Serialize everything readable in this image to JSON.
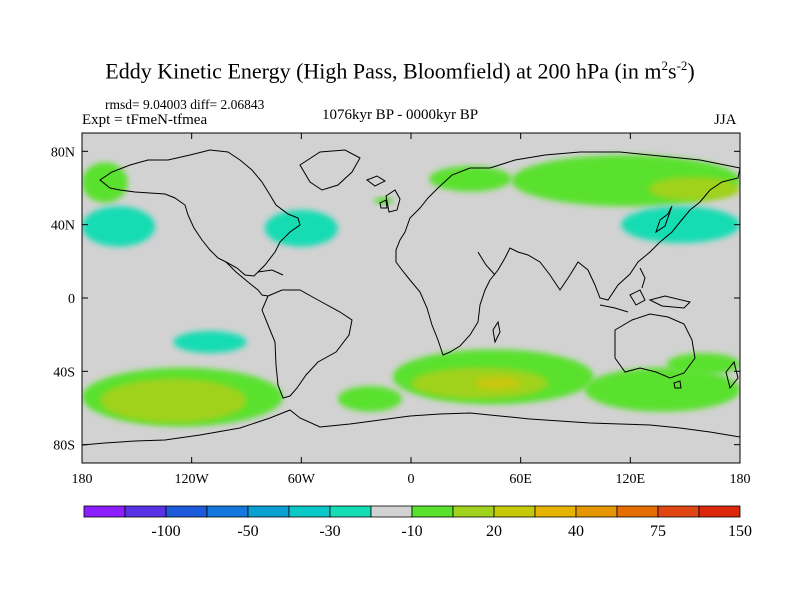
{
  "title": {
    "text": "Eddy Kinetic Energy (High Pass, Bloomfield) at 200 hPa (in m",
    "unit_exp1": "2",
    "unit_mid": "s",
    "unit_exp2": "-2",
    "unit_close": ")"
  },
  "stats": "rmsd= 9.04003 diff= 2.06843",
  "expt": "Expt = tFmeN-tfmea",
  "period": "1076kyr BP - 0000kyr BP",
  "season": "JJA",
  "axes": {
    "x_ticks": [
      "180",
      "120W",
      "60W",
      "0",
      "60E",
      "120E",
      "180"
    ],
    "y_ticks": [
      "80N",
      "40N",
      "0",
      "40S",
      "80S"
    ]
  },
  "colorbar": {
    "colors": [
      "#8c1eff",
      "#5a32e6",
      "#1e5adc",
      "#1478dc",
      "#0aa0d2",
      "#0ac8c8",
      "#14dcb4",
      "#d2d2d2",
      "#5ae12d",
      "#a0d21e",
      "#c8c80a",
      "#e6b400",
      "#e69600",
      "#e66e00",
      "#e04614",
      "#dc280a"
    ],
    "labels": [
      "-100",
      "-50",
      "-30",
      "-10",
      "20",
      "40",
      "75",
      "150"
    ]
  },
  "field_colors": {
    "background": "#d2d2d2",
    "teal": "#14dcb4",
    "cyan": "#0ac8c8",
    "green": "#5ae12d",
    "yellowgreen": "#a0d21e",
    "olive": "#c8c80a"
  },
  "regions": [
    {
      "level": "green",
      "lon_min": -180,
      "lon_max": -155,
      "lat_min": 52,
      "lat_max": 74
    },
    {
      "level": "green",
      "lon_min": 55,
      "lon_max": 180,
      "lat_min": 50,
      "lat_max": 78
    },
    {
      "level": "yellowgreen",
      "lon_min": 130,
      "lon_max": 180,
      "lat_min": 53,
      "lat_max": 66
    },
    {
      "level": "green",
      "lon_min": 10,
      "lon_max": 55,
      "lat_min": 58,
      "lat_max": 72
    },
    {
      "level": "green",
      "lon_min": -20,
      "lon_max": -10,
      "lat_min": 51,
      "lat_max": 55
    },
    {
      "level": "teal",
      "lon_min": -180,
      "lon_max": -140,
      "lat_min": 28,
      "lat_max": 50
    },
    {
      "level": "teal",
      "lon_min": -80,
      "lon_max": -40,
      "lat_min": 28,
      "lat_max": 48
    },
    {
      "level": "teal",
      "lon_min": 115,
      "lon_max": 180,
      "lat_min": 30,
      "lat_max": 50
    },
    {
      "level": "teal",
      "lon_min": -130,
      "lon_max": -90,
      "lat_min": -30,
      "lat_max": -18
    },
    {
      "level": "green",
      "lon_min": -180,
      "lon_max": -70,
      "lat_min": -70,
      "lat_max": -38
    },
    {
      "level": "yellowgreen",
      "lon_min": -170,
      "lon_max": -90,
      "lat_min": -68,
      "lat_max": -44
    },
    {
      "level": "green",
      "lon_min": -40,
      "lon_max": -5,
      "lat_min": -62,
      "lat_max": -48
    },
    {
      "level": "green",
      "lon_min": -10,
      "lon_max": 100,
      "lat_min": -58,
      "lat_max": -28
    },
    {
      "level": "yellowgreen",
      "lon_min": 0,
      "lon_max": 75,
      "lat_min": -55,
      "lat_max": -38
    },
    {
      "level": "olive",
      "lon_min": 35,
      "lon_max": 60,
      "lat_min": -50,
      "lat_max": -43
    },
    {
      "level": "green",
      "lon_min": 95,
      "lon_max": 180,
      "lat_min": -62,
      "lat_max": -38
    },
    {
      "level": "green",
      "lon_min": 140,
      "lon_max": 180,
      "lat_min": -42,
      "lat_max": -30
    }
  ]
}
